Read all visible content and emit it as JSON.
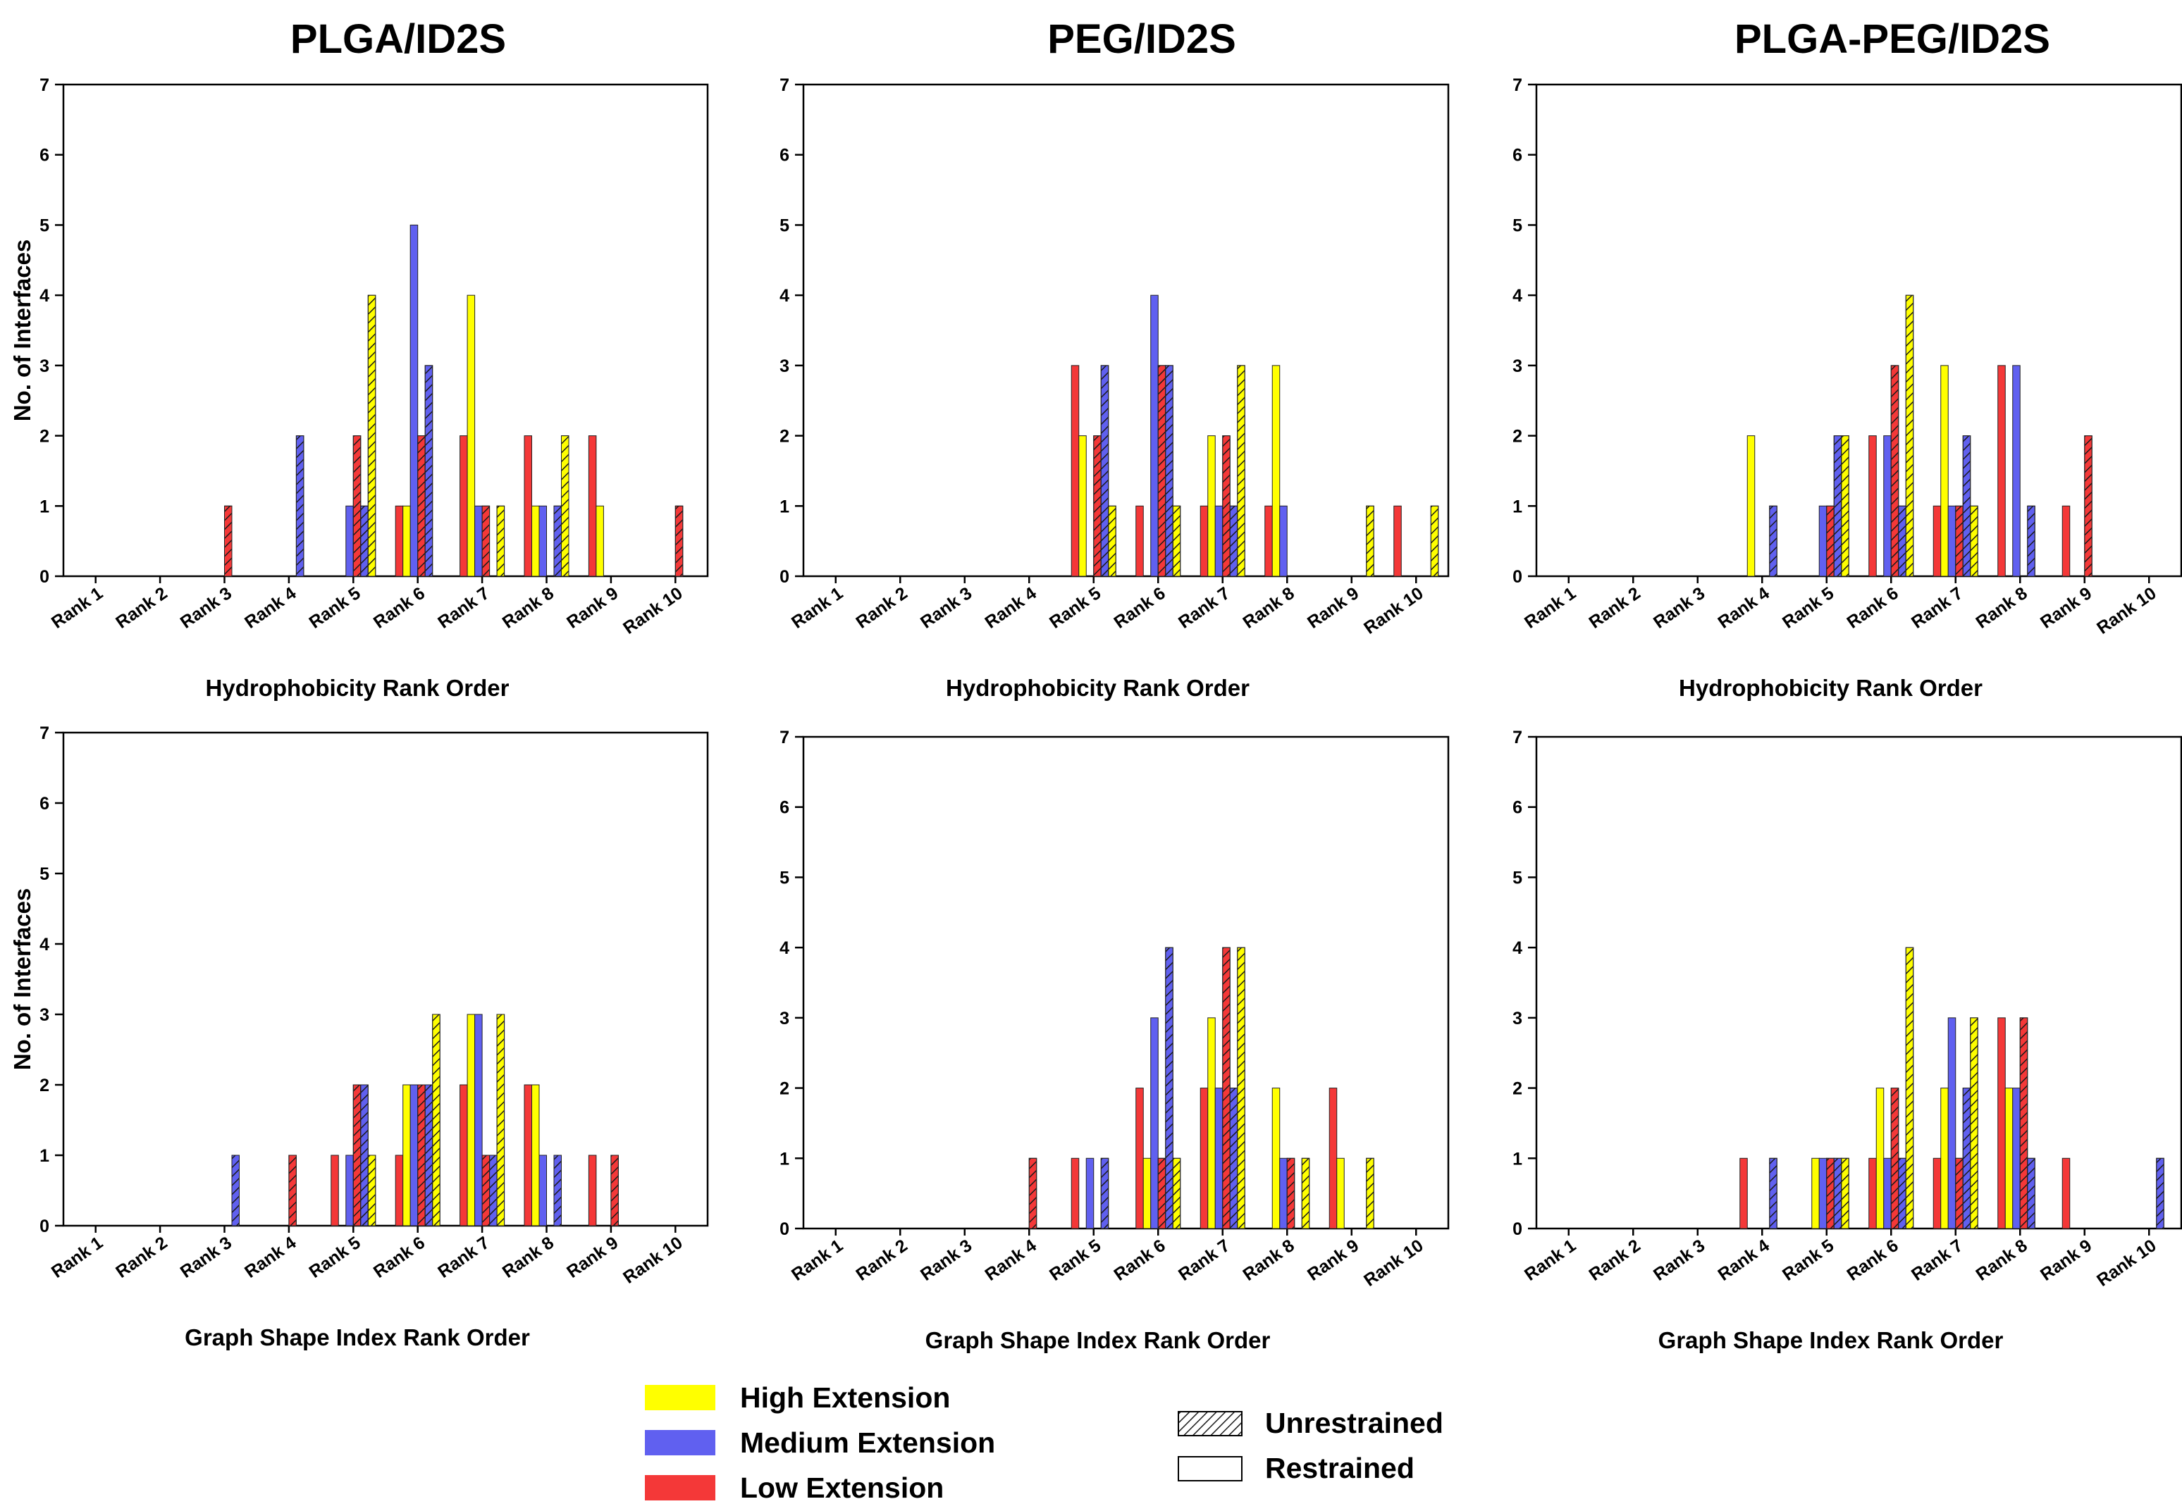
{
  "figure": {
    "column_titles": [
      "PLGA/ID2S",
      "PEG/ID2S",
      "PLGA-PEG/ID2S"
    ]
  },
  "colors": {
    "high": "#ffff00",
    "medium": "#6060f0",
    "low": "#f43838",
    "hatch": "#1a1a1a",
    "axis": "#000000"
  },
  "legend": {
    "extension_items": [
      {
        "label": "High Extension",
        "key": "high"
      },
      {
        "label": "Medium Extension",
        "key": "medium"
      },
      {
        "label": "Low Extension",
        "key": "low"
      }
    ],
    "pattern_items": [
      {
        "label": "Unrestrained",
        "hatched": true
      },
      {
        "label": "Restrained",
        "hatched": false
      }
    ]
  },
  "chart_data": [
    {
      "type": "bar",
      "panel": "PLGA/ID2S - Hydrophobicity",
      "column_title": "PLGA/ID2S",
      "xlabel": "Hydrophobicity Rank Order",
      "ylabel": "No. of Interfaces",
      "ylim": [
        0,
        7
      ],
      "yticks": [
        0,
        1,
        2,
        3,
        4,
        5,
        6,
        7
      ],
      "categories": [
        "Rank 1",
        "Rank 2",
        "Rank 3",
        "Rank 4",
        "Rank 5",
        "Rank 6",
        "Rank 7",
        "Rank 8",
        "Rank 9",
        "Rank 10"
      ],
      "series": [
        {
          "name": "Low Extension Restrained",
          "values": [
            0,
            0,
            0,
            0,
            0,
            1,
            2,
            2,
            2,
            0
          ]
        },
        {
          "name": "High Extension Restrained",
          "values": [
            0,
            0,
            0,
            0,
            0,
            1,
            4,
            1,
            1,
            0
          ]
        },
        {
          "name": "Medium Extension Restrained",
          "values": [
            0,
            0,
            0,
            0,
            1,
            5,
            1,
            1,
            0,
            0
          ]
        },
        {
          "name": "Low Extension Unrestrained",
          "values": [
            0,
            0,
            1,
            0,
            2,
            2,
            1,
            0,
            0,
            1
          ]
        },
        {
          "name": "Medium Extension Unrestrained",
          "values": [
            0,
            0,
            0,
            2,
            1,
            3,
            0,
            1,
            0,
            0
          ]
        },
        {
          "name": "High Extension Unrestrained",
          "values": [
            0,
            0,
            0,
            0,
            4,
            0,
            1,
            2,
            0,
            0
          ]
        }
      ]
    },
    {
      "type": "bar",
      "panel": "PEG/ID2S - Hydrophobicity",
      "column_title": "PEG/ID2S",
      "xlabel": "Hydrophobicity Rank Order",
      "ylabel": "",
      "ylim": [
        0,
        7
      ],
      "yticks": [
        0,
        1,
        2,
        3,
        4,
        5,
        6,
        7
      ],
      "categories": [
        "Rank 1",
        "Rank 2",
        "Rank 3",
        "Rank 4",
        "Rank 5",
        "Rank 6",
        "Rank 7",
        "Rank 8",
        "Rank 9",
        "Rank 10"
      ],
      "series": [
        {
          "name": "Low Extension Restrained",
          "values": [
            0,
            0,
            0,
            0,
            3,
            1,
            1,
            1,
            0,
            1
          ]
        },
        {
          "name": "High Extension Restrained",
          "values": [
            0,
            0,
            0,
            0,
            2,
            0,
            2,
            3,
            0,
            0
          ]
        },
        {
          "name": "Medium Extension Restrained",
          "values": [
            0,
            0,
            0,
            0,
            0,
            4,
            1,
            1,
            0,
            0
          ]
        },
        {
          "name": "Low Extension Unrestrained",
          "values": [
            0,
            0,
            0,
            0,
            2,
            3,
            2,
            0,
            0,
            0
          ]
        },
        {
          "name": "Medium Extension Unrestrained",
          "values": [
            0,
            0,
            0,
            0,
            3,
            3,
            1,
            0,
            0,
            0
          ]
        },
        {
          "name": "High Extension Unrestrained",
          "values": [
            0,
            0,
            0,
            0,
            1,
            1,
            3,
            0,
            1,
            1
          ]
        }
      ]
    },
    {
      "type": "bar",
      "panel": "PLGA-PEG/ID2S - Hydrophobicity",
      "column_title": "PLGA-PEG/ID2S",
      "xlabel": "Hydrophobicity Rank Order",
      "ylabel": "",
      "ylim": [
        0,
        7
      ],
      "yticks": [
        0,
        1,
        2,
        3,
        4,
        5,
        6,
        7
      ],
      "categories": [
        "Rank 1",
        "Rank 2",
        "Rank 3",
        "Rank 4",
        "Rank 5",
        "Rank 6",
        "Rank 7",
        "Rank 8",
        "Rank 9",
        "Rank 10"
      ],
      "series": [
        {
          "name": "Low Extension Restrained",
          "values": [
            0,
            0,
            0,
            0,
            0,
            2,
            1,
            3,
            1,
            0
          ]
        },
        {
          "name": "High Extension Restrained",
          "values": [
            0,
            0,
            0,
            2,
            0,
            0,
            3,
            0,
            0,
            0
          ]
        },
        {
          "name": "Medium Extension Restrained",
          "values": [
            0,
            0,
            0,
            0,
            1,
            2,
            1,
            3,
            0,
            0
          ]
        },
        {
          "name": "Low Extension Unrestrained",
          "values": [
            0,
            0,
            0,
            0,
            1,
            3,
            1,
            0,
            2,
            0
          ]
        },
        {
          "name": "Medium Extension Unrestrained",
          "values": [
            0,
            0,
            0,
            1,
            2,
            1,
            2,
            1,
            0,
            0
          ]
        },
        {
          "name": "High Extension Unrestrained",
          "values": [
            0,
            0,
            0,
            0,
            2,
            4,
            1,
            0,
            0,
            0
          ]
        }
      ]
    },
    {
      "type": "bar",
      "panel": "PLGA/ID2S - Graph Shape Index",
      "column_title": "PLGA/ID2S",
      "xlabel": "Graph Shape Index Rank Order",
      "ylabel": "No. of Interfaces",
      "ylim": [
        0,
        7
      ],
      "yticks": [
        0,
        1,
        2,
        3,
        4,
        5,
        6,
        7
      ],
      "categories": [
        "Rank 1",
        "Rank 2",
        "Rank 3",
        "Rank 4",
        "Rank 5",
        "Rank 6",
        "Rank 7",
        "Rank 8",
        "Rank 9",
        "Rank 10"
      ],
      "series": [
        {
          "name": "Low Extension Restrained",
          "values": [
            0,
            0,
            0,
            0,
            1,
            1,
            2,
            2,
            1,
            0
          ]
        },
        {
          "name": "High Extension Restrained",
          "values": [
            0,
            0,
            0,
            0,
            0,
            2,
            3,
            2,
            0,
            0
          ]
        },
        {
          "name": "Medium Extension Restrained",
          "values": [
            0,
            0,
            0,
            0,
            1,
            2,
            3,
            1,
            0,
            0
          ]
        },
        {
          "name": "Low Extension Unrestrained",
          "values": [
            0,
            0,
            0,
            1,
            2,
            2,
            1,
            0,
            1,
            0
          ]
        },
        {
          "name": "Medium Extension Unrestrained",
          "values": [
            0,
            0,
            1,
            0,
            2,
            2,
            1,
            1,
            0,
            0
          ]
        },
        {
          "name": "High Extension Unrestrained",
          "values": [
            0,
            0,
            0,
            0,
            1,
            3,
            3,
            0,
            0,
            0
          ]
        }
      ]
    },
    {
      "type": "bar",
      "panel": "PEG/ID2S - Graph Shape Index",
      "column_title": "PEG/ID2S",
      "xlabel": "Graph Shape Index Rank Order",
      "ylabel": "",
      "ylim": [
        0,
        7
      ],
      "yticks": [
        0,
        1,
        2,
        3,
        4,
        5,
        6,
        7
      ],
      "categories": [
        "Rank 1",
        "Rank 2",
        "Rank 3",
        "Rank 4",
        "Rank 5",
        "Rank 6",
        "Rank 7",
        "Rank 8",
        "Rank 9",
        "Rank 10"
      ],
      "series": [
        {
          "name": "Low Extension Restrained",
          "values": [
            0,
            0,
            0,
            0,
            1,
            2,
            2,
            0,
            2,
            0
          ]
        },
        {
          "name": "High Extension Restrained",
          "values": [
            0,
            0,
            0,
            0,
            0,
            1,
            3,
            2,
            1,
            0
          ]
        },
        {
          "name": "Medium Extension Restrained",
          "values": [
            0,
            0,
            0,
            0,
            1,
            3,
            2,
            1,
            0,
            0
          ]
        },
        {
          "name": "Low Extension Unrestrained",
          "values": [
            0,
            0,
            0,
            1,
            0,
            1,
            4,
            1,
            0,
            0
          ]
        },
        {
          "name": "Medium Extension Unrestrained",
          "values": [
            0,
            0,
            0,
            0,
            1,
            4,
            2,
            0,
            0,
            0
          ]
        },
        {
          "name": "High Extension Unrestrained",
          "values": [
            0,
            0,
            0,
            0,
            0,
            1,
            4,
            1,
            1,
            0
          ]
        }
      ]
    },
    {
      "type": "bar",
      "panel": "PLGA-PEG/ID2S - Graph Shape Index",
      "column_title": "PLGA-PEG/ID2S",
      "xlabel": "Graph Shape Index Rank Order",
      "ylabel": "",
      "ylim": [
        0,
        7
      ],
      "yticks": [
        0,
        1,
        2,
        3,
        4,
        5,
        6,
        7
      ],
      "categories": [
        "Rank 1",
        "Rank 2",
        "Rank 3",
        "Rank 4",
        "Rank 5",
        "Rank 6",
        "Rank 7",
        "Rank 8",
        "Rank 9",
        "Rank 10"
      ],
      "series": [
        {
          "name": "Low Extension Restrained",
          "values": [
            0,
            0,
            0,
            1,
            0,
            1,
            1,
            3,
            1,
            0
          ]
        },
        {
          "name": "High Extension Restrained",
          "values": [
            0,
            0,
            0,
            0,
            1,
            2,
            2,
            2,
            0,
            0
          ]
        },
        {
          "name": "Medium Extension Restrained",
          "values": [
            0,
            0,
            0,
            0,
            1,
            1,
            3,
            2,
            0,
            0
          ]
        },
        {
          "name": "Low Extension Unrestrained",
          "values": [
            0,
            0,
            0,
            0,
            1,
            2,
            1,
            3,
            0,
            0
          ]
        },
        {
          "name": "Medium Extension Unrestrained",
          "values": [
            0,
            0,
            0,
            1,
            1,
            1,
            2,
            1,
            0,
            1
          ]
        },
        {
          "name": "High Extension Unrestrained",
          "values": [
            0,
            0,
            0,
            0,
            1,
            4,
            3,
            0,
            0,
            0
          ]
        }
      ]
    }
  ]
}
